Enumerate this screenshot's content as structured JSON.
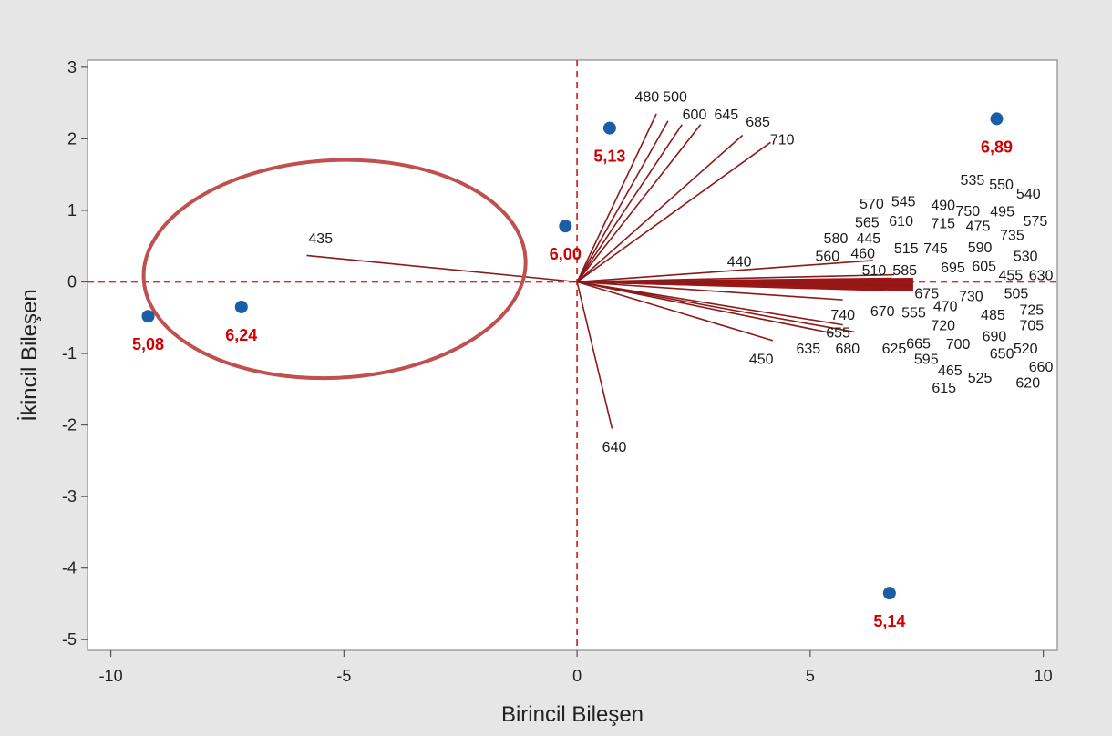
{
  "chart_data": {
    "type": "scatter",
    "subtype": "biplot",
    "xlabel": "Birincil Bileşen",
    "ylabel": "İkincil Bileşen",
    "xlim": [
      -10.5,
      10.3
    ],
    "ylim": [
      -5.15,
      3.1
    ],
    "x_ticks": [
      -10,
      -5,
      0,
      5,
      10
    ],
    "y_ticks": [
      3,
      2,
      1,
      0,
      -1,
      -2,
      -3,
      -4,
      -5
    ],
    "x_tick_labels": [
      "-10",
      "-5",
      "0",
      "5",
      "10"
    ],
    "y_tick_labels": [
      "3",
      "2",
      "1",
      "0",
      "-1",
      "-2",
      "-3",
      "-4",
      "-5"
    ],
    "reference_lines": {
      "x": 0,
      "y": 0,
      "style": "dashed",
      "color": "#d32f2f"
    },
    "score_points": [
      {
        "label": "5,08",
        "x": -9.2,
        "y": -0.48
      },
      {
        "label": "6,24",
        "x": -7.2,
        "y": -0.35
      },
      {
        "label": "6,00",
        "x": -0.25,
        "y": 0.78
      },
      {
        "label": "5,13",
        "x": 0.7,
        "y": 2.15
      },
      {
        "label": "6,89",
        "x": 9.0,
        "y": 2.28
      },
      {
        "label": "5,14",
        "x": 6.7,
        "y": -4.35
      }
    ],
    "loading_vectors": [
      {
        "label": "435",
        "x": -5.8,
        "y": 0.37
      },
      {
        "label": "480",
        "x": 1.7,
        "y": 2.35
      },
      {
        "label": "500",
        "x": 1.95,
        "y": 2.25
      },
      {
        "label": "600",
        "x": 2.25,
        "y": 2.2
      },
      {
        "label": "645",
        "x": 2.65,
        "y": 2.2
      },
      {
        "label": "685",
        "x": 3.55,
        "y": 2.05
      },
      {
        "label": "710",
        "x": 4.15,
        "y": 1.95
      },
      {
        "label": "440",
        "x": 6.35,
        "y": 0.3
      },
      {
        "label": "510",
        "x": 6.8,
        "y": 0.1
      },
      {
        "label": "675",
        "x": 7.2,
        "y": -0.05
      },
      {
        "label": "740",
        "x": 5.7,
        "y": -0.25
      },
      {
        "label": "655",
        "x": 5.7,
        "y": -0.6
      },
      {
        "label": "635",
        "x": 5.5,
        "y": -0.72
      },
      {
        "label": "680",
        "x": 5.95,
        "y": -0.7
      },
      {
        "label": "450",
        "x": 4.2,
        "y": -0.82
      },
      {
        "label": "640",
        "x": 0.75,
        "y": -2.05
      }
    ],
    "variable_labels": [
      {
        "label": "480",
        "x": 1.5,
        "y": 2.6
      },
      {
        "label": "500",
        "x": 2.1,
        "y": 2.6
      },
      {
        "label": "600",
        "x": 2.52,
        "y": 2.35
      },
      {
        "label": "645",
        "x": 3.2,
        "y": 2.35
      },
      {
        "label": "685",
        "x": 3.88,
        "y": 2.25
      },
      {
        "label": "710",
        "x": 4.4,
        "y": 2.0
      },
      {
        "label": "435",
        "x": -5.5,
        "y": 0.62
      },
      {
        "label": "535",
        "x": 8.48,
        "y": 1.43
      },
      {
        "label": "550",
        "x": 9.1,
        "y": 1.37
      },
      {
        "label": "540",
        "x": 9.68,
        "y": 1.24
      },
      {
        "label": "570",
        "x": 6.32,
        "y": 1.1
      },
      {
        "label": "545",
        "x": 7.0,
        "y": 1.13
      },
      {
        "label": "490",
        "x": 7.85,
        "y": 1.08
      },
      {
        "label": "750",
        "x": 8.38,
        "y": 1.0
      },
      {
        "label": "495",
        "x": 9.12,
        "y": 0.99
      },
      {
        "label": "575",
        "x": 9.83,
        "y": 0.86
      },
      {
        "label": "565",
        "x": 6.22,
        "y": 0.84
      },
      {
        "label": "610",
        "x": 6.95,
        "y": 0.86
      },
      {
        "label": "715",
        "x": 7.85,
        "y": 0.83
      },
      {
        "label": "475",
        "x": 8.6,
        "y": 0.79
      },
      {
        "label": "735",
        "x": 9.33,
        "y": 0.66
      },
      {
        "label": "580",
        "x": 5.55,
        "y": 0.62
      },
      {
        "label": "445",
        "x": 6.25,
        "y": 0.62
      },
      {
        "label": "515",
        "x": 7.06,
        "y": 0.48
      },
      {
        "label": "745",
        "x": 7.69,
        "y": 0.48
      },
      {
        "label": "590",
        "x": 8.64,
        "y": 0.49
      },
      {
        "label": "530",
        "x": 9.62,
        "y": 0.37
      },
      {
        "label": "560",
        "x": 5.37,
        "y": 0.37
      },
      {
        "label": "460",
        "x": 6.13,
        "y": 0.41
      },
      {
        "label": "440",
        "x": 3.48,
        "y": 0.29
      },
      {
        "label": "695",
        "x": 8.06,
        "y": 0.21
      },
      {
        "label": "605",
        "x": 8.73,
        "y": 0.23
      },
      {
        "label": "455",
        "x": 9.3,
        "y": 0.1
      },
      {
        "label": "630",
        "x": 9.95,
        "y": 0.1
      },
      {
        "label": "510",
        "x": 6.37,
        "y": 0.17
      },
      {
        "label": "585",
        "x": 7.03,
        "y": 0.17
      },
      {
        "label": "675",
        "x": 7.5,
        "y": -0.15
      },
      {
        "label": "730",
        "x": 8.45,
        "y": -0.19
      },
      {
        "label": "505",
        "x": 9.42,
        "y": -0.15
      },
      {
        "label": "470",
        "x": 7.9,
        "y": -0.33
      },
      {
        "label": "725",
        "x": 9.75,
        "y": -0.38
      },
      {
        "label": "740",
        "x": 5.7,
        "y": -0.45
      },
      {
        "label": "670",
        "x": 6.55,
        "y": -0.4
      },
      {
        "label": "555",
        "x": 7.22,
        "y": -0.42
      },
      {
        "label": "485",
        "x": 8.92,
        "y": -0.45
      },
      {
        "label": "720",
        "x": 7.85,
        "y": -0.6
      },
      {
        "label": "705",
        "x": 9.75,
        "y": -0.6
      },
      {
        "label": "655",
        "x": 5.6,
        "y": -0.7
      },
      {
        "label": "690",
        "x": 8.95,
        "y": -0.75
      },
      {
        "label": "665",
        "x": 7.32,
        "y": -0.85
      },
      {
        "label": "700",
        "x": 8.17,
        "y": -0.86
      },
      {
        "label": "635",
        "x": 4.96,
        "y": -0.92
      },
      {
        "label": "680",
        "x": 5.8,
        "y": -0.92
      },
      {
        "label": "625",
        "x": 6.8,
        "y": -0.92
      },
      {
        "label": "520",
        "x": 9.62,
        "y": -0.92
      },
      {
        "label": "650",
        "x": 9.11,
        "y": -0.99
      },
      {
        "label": "595",
        "x": 7.49,
        "y": -1.07
      },
      {
        "label": "450",
        "x": 3.95,
        "y": -1.07
      },
      {
        "label": "465",
        "x": 8.0,
        "y": -1.23
      },
      {
        "label": "660",
        "x": 9.95,
        "y": -1.18
      },
      {
        "label": "525",
        "x": 8.64,
        "y": -1.33
      },
      {
        "label": "620",
        "x": 9.67,
        "y": -1.4
      },
      {
        "label": "615",
        "x": 7.87,
        "y": -1.47
      },
      {
        "label": "640",
        "x": 0.8,
        "y": -2.3
      }
    ],
    "fan_bundle": {
      "tip_x": 7.2,
      "tip_y": -0.05,
      "spread_top": 0.05,
      "spread_bottom": -0.12
    },
    "highlight_ellipse": {
      "center_x": -5.2,
      "center_y": 0.18,
      "rx": 4.1,
      "ry": 1.52,
      "rotation_deg": -3,
      "color": "#c0504d"
    },
    "colors": {
      "point": "#1a5ea8",
      "point_label": "#d00000",
      "vector": "#8b1a1a",
      "bundle": "#9b1616",
      "reference": "#d32f2f",
      "axis": "#555555",
      "plot_bg": "#ffffff",
      "page_bg": "#e6e6e6"
    }
  }
}
